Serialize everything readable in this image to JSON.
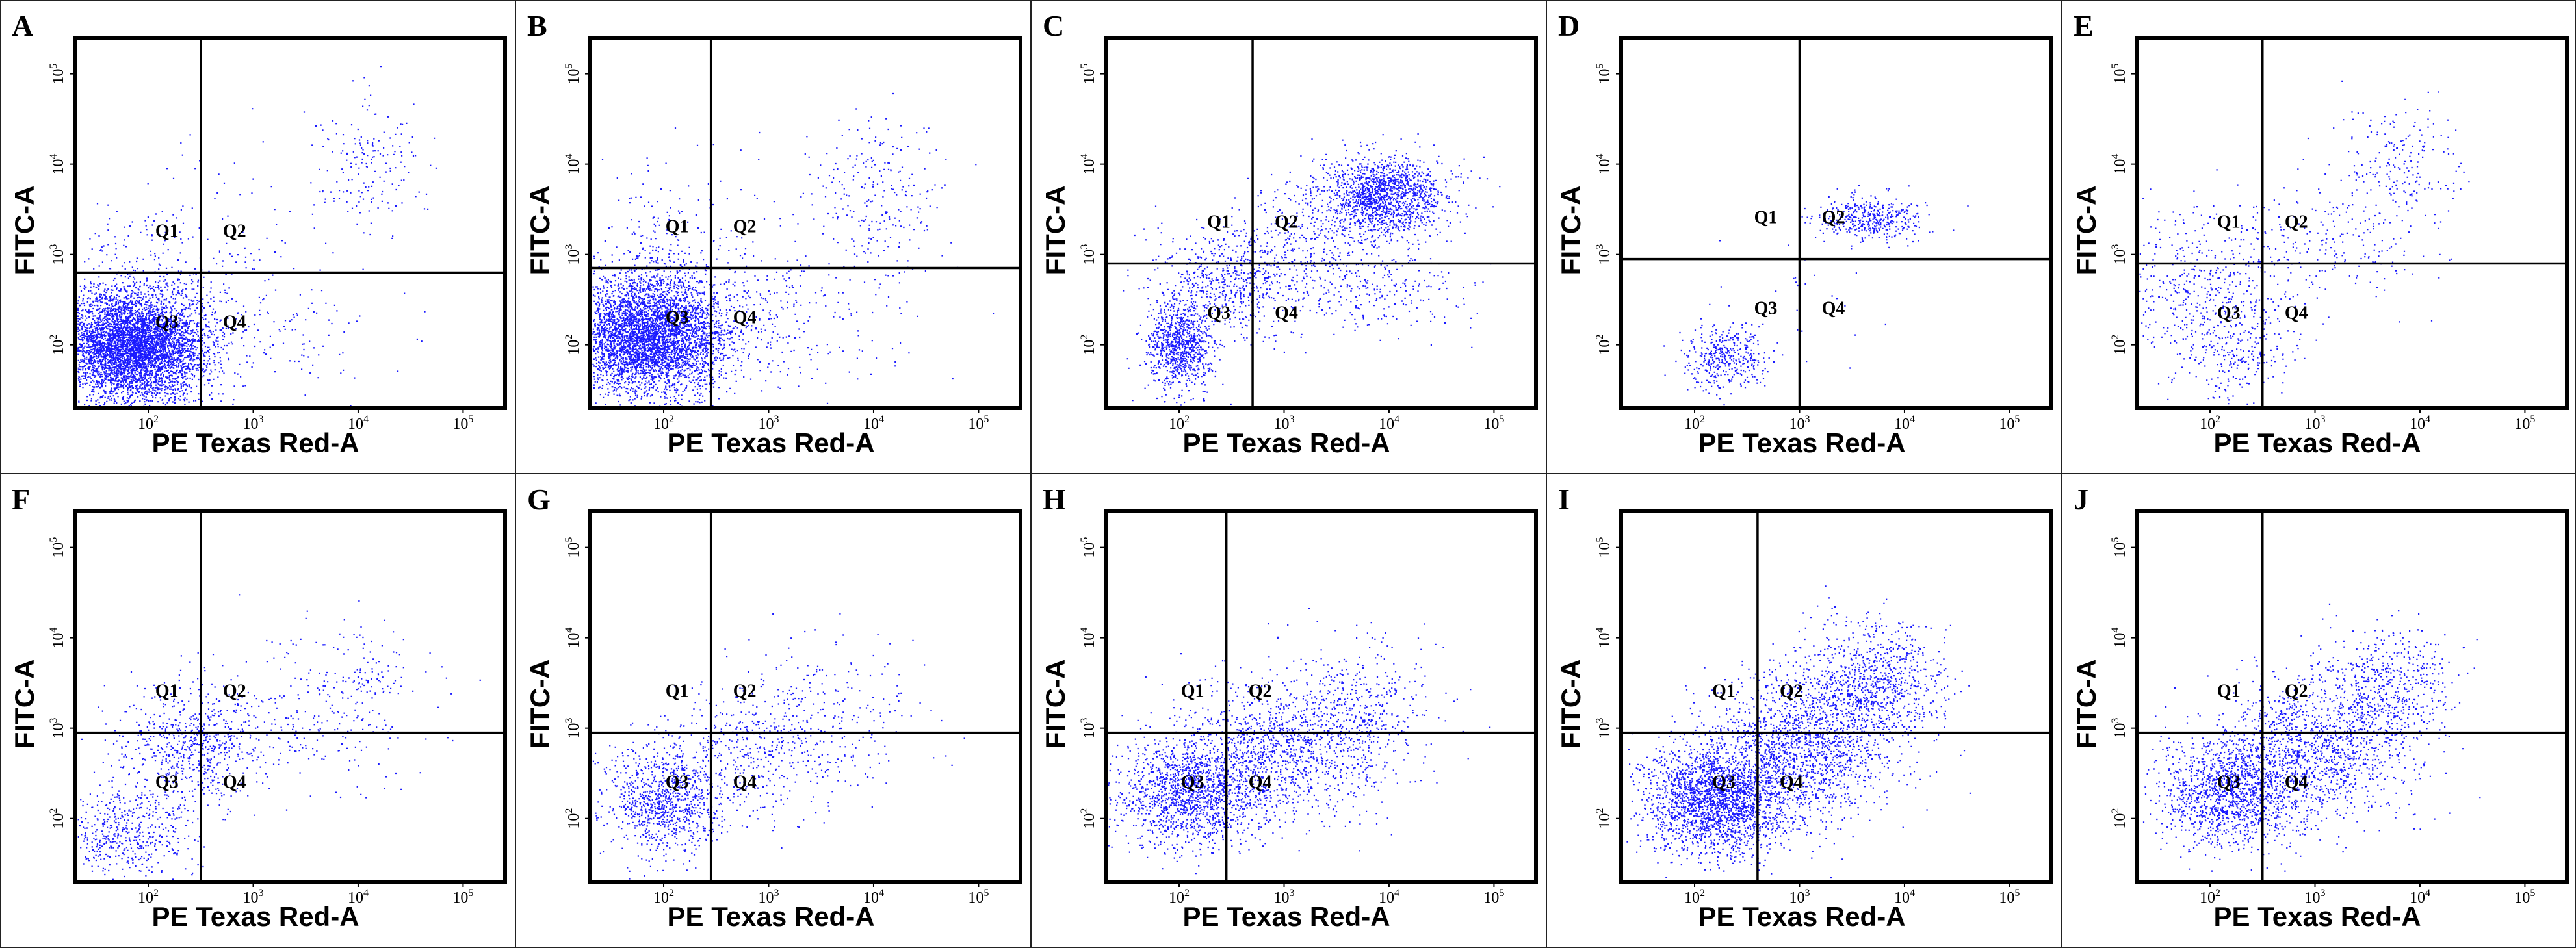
{
  "figure": {
    "scatter_color": "#1a1aff",
    "line_color": "#000000",
    "axis_tick_labels": [
      "10^2",
      "10^3",
      "10^4",
      "10^5"
    ]
  },
  "chart_data": [
    {
      "panel": "A",
      "type": "scatter",
      "xlabel": "PE Texas Red-A",
      "ylabel": "FITC-A",
      "xlim": [
        1.3,
        5.4
      ],
      "ylim": [
        1.3,
        5.4
      ],
      "x_ticks": [
        "10^2",
        "10^3",
        "10^4",
        "10^5"
      ],
      "y_ticks": [
        "10^2",
        "10^3",
        "10^4",
        "10^5"
      ],
      "quadrant_labels": [
        "Q1",
        "Q2",
        "Q3",
        "Q4"
      ],
      "gate": {
        "x": 2.5,
        "y": 2.8
      },
      "clusters": [
        {
          "cx": 1.85,
          "cy": 2.0,
          "sx": 0.35,
          "sy": 0.3,
          "n": 5200
        },
        {
          "cx": 2.0,
          "cy": 2.6,
          "sx": 0.5,
          "sy": 0.5,
          "n": 350
        },
        {
          "cx": 3.1,
          "cy": 2.1,
          "sx": 0.5,
          "sy": 0.35,
          "n": 120
        },
        {
          "cx": 4.1,
          "cy": 4.0,
          "sx": 0.25,
          "sy": 0.35,
          "n": 160
        },
        {
          "cx": 3.4,
          "cy": 3.3,
          "sx": 0.7,
          "sy": 0.6,
          "n": 70
        }
      ]
    },
    {
      "panel": "B",
      "type": "scatter",
      "xlabel": "PE Texas Red-A",
      "ylabel": "FITC-A",
      "xlim": [
        1.3,
        5.4
      ],
      "ylim": [
        1.3,
        5.4
      ],
      "x_ticks": [
        "10^2",
        "10^3",
        "10^4",
        "10^5"
      ],
      "y_ticks": [
        "10^2",
        "10^3",
        "10^4",
        "10^5"
      ],
      "quadrant_labels": [
        "Q1",
        "Q2",
        "Q3",
        "Q4"
      ],
      "gate": {
        "x": 2.45,
        "y": 2.85
      },
      "clusters": [
        {
          "cx": 1.85,
          "cy": 2.1,
          "sx": 0.35,
          "sy": 0.32,
          "n": 4300
        },
        {
          "cx": 2.0,
          "cy": 2.75,
          "sx": 0.5,
          "sy": 0.55,
          "n": 420
        },
        {
          "cx": 3.0,
          "cy": 2.2,
          "sx": 0.55,
          "sy": 0.4,
          "n": 220
        },
        {
          "cx": 4.0,
          "cy": 3.7,
          "sx": 0.35,
          "sy": 0.45,
          "n": 200
        },
        {
          "cx": 3.6,
          "cy": 3.1,
          "sx": 0.6,
          "sy": 0.6,
          "n": 90
        }
      ]
    },
    {
      "panel": "C",
      "type": "scatter",
      "xlabel": "PE Texas Red-A",
      "ylabel": "FITC-A",
      "xlim": [
        1.3,
        5.4
      ],
      "ylim": [
        1.3,
        5.4
      ],
      "x_ticks": [
        "10^2",
        "10^3",
        "10^4",
        "10^5"
      ],
      "y_ticks": [
        "10^2",
        "10^3",
        "10^4",
        "10^5"
      ],
      "quadrant_labels": [
        "Q1",
        "Q2",
        "Q3",
        "Q4"
      ],
      "gate": {
        "x": 2.7,
        "y": 2.9
      },
      "clusters": [
        {
          "cx": 2.0,
          "cy": 2.0,
          "sx": 0.15,
          "sy": 0.25,
          "n": 900
        },
        {
          "cx": 2.5,
          "cy": 2.7,
          "sx": 0.35,
          "sy": 0.3,
          "n": 600
        },
        {
          "cx": 3.95,
          "cy": 3.65,
          "sx": 0.3,
          "sy": 0.22,
          "n": 1500
        },
        {
          "cx": 3.3,
          "cy": 3.2,
          "sx": 0.4,
          "sy": 0.35,
          "n": 350
        },
        {
          "cx": 3.9,
          "cy": 2.6,
          "sx": 0.5,
          "sy": 0.25,
          "n": 220
        }
      ]
    },
    {
      "panel": "D",
      "type": "scatter",
      "xlabel": "PE Texas Red-A",
      "ylabel": "FITC-A",
      "xlim": [
        1.3,
        5.4
      ],
      "ylim": [
        1.3,
        5.4
      ],
      "x_ticks": [
        "10^2",
        "10^3",
        "10^4",
        "10^5"
      ],
      "y_ticks": [
        "10^2",
        "10^3",
        "10^4",
        "10^5"
      ],
      "quadrant_labels": [
        "Q1",
        "Q2",
        "Q3",
        "Q4"
      ],
      "gate": {
        "x": 3.0,
        "y": 2.95
      },
      "clusters": [
        {
          "cx": 2.3,
          "cy": 1.85,
          "sx": 0.2,
          "sy": 0.18,
          "n": 380
        },
        {
          "cx": 3.65,
          "cy": 3.4,
          "sx": 0.25,
          "sy": 0.12,
          "n": 420
        },
        {
          "cx": 3.0,
          "cy": 2.6,
          "sx": 0.4,
          "sy": 0.4,
          "n": 25
        }
      ]
    },
    {
      "panel": "E",
      "type": "scatter",
      "xlabel": "PE Texas Red-A",
      "ylabel": "FITC-A",
      "xlim": [
        1.3,
        5.4
      ],
      "ylim": [
        1.3,
        5.4
      ],
      "x_ticks": [
        "10^2",
        "10^3",
        "10^4",
        "10^5"
      ],
      "y_ticks": [
        "10^2",
        "10^3",
        "10^4",
        "10^5"
      ],
      "quadrant_labels": [
        "Q1",
        "Q2",
        "Q3",
        "Q4"
      ],
      "gate": {
        "x": 2.5,
        "y": 2.9
      },
      "clusters": [
        {
          "cx": 1.9,
          "cy": 2.6,
          "sx": 0.45,
          "sy": 0.45,
          "n": 550
        },
        {
          "cx": 2.3,
          "cy": 1.9,
          "sx": 0.25,
          "sy": 0.3,
          "n": 200
        },
        {
          "cx": 3.8,
          "cy": 4.0,
          "sx": 0.3,
          "sy": 0.3,
          "n": 180
        },
        {
          "cx": 3.2,
          "cy": 3.2,
          "sx": 0.5,
          "sy": 0.35,
          "n": 220
        }
      ]
    },
    {
      "panel": "F",
      "type": "scatter",
      "xlabel": "PE Texas Red-A",
      "ylabel": "FITC-A",
      "xlim": [
        1.3,
        5.4
      ],
      "ylim": [
        1.3,
        5.4
      ],
      "x_ticks": [
        "10^2",
        "10^3",
        "10^4",
        "10^5"
      ],
      "y_ticks": [
        "10^2",
        "10^3",
        "10^4",
        "10^5"
      ],
      "quadrant_labels": [
        "Q1",
        "Q2",
        "Q3",
        "Q4"
      ],
      "gate": {
        "x": 2.5,
        "y": 2.95
      },
      "clusters": [
        {
          "cx": 1.8,
          "cy": 1.85,
          "sx": 0.3,
          "sy": 0.25,
          "n": 500
        },
        {
          "cx": 2.4,
          "cy": 2.8,
          "sx": 0.35,
          "sy": 0.3,
          "n": 650
        },
        {
          "cx": 3.5,
          "cy": 3.1,
          "sx": 0.6,
          "sy": 0.45,
          "n": 260
        },
        {
          "cx": 4.1,
          "cy": 3.6,
          "sx": 0.2,
          "sy": 0.3,
          "n": 80
        }
      ]
    },
    {
      "panel": "G",
      "type": "scatter",
      "xlabel": "PE Texas Red-A",
      "ylabel": "FITC-A",
      "xlim": [
        1.3,
        5.4
      ],
      "ylim": [
        1.3,
        5.4
      ],
      "x_ticks": [
        "10^2",
        "10^3",
        "10^4",
        "10^5"
      ],
      "y_ticks": [
        "10^2",
        "10^3",
        "10^4",
        "10^5"
      ],
      "quadrant_labels": [
        "Q1",
        "Q2",
        "Q3",
        "Q4"
      ],
      "gate": {
        "x": 2.45,
        "y": 2.95
      },
      "clusters": [
        {
          "cx": 2.0,
          "cy": 2.2,
          "sx": 0.28,
          "sy": 0.3,
          "n": 900
        },
        {
          "cx": 2.8,
          "cy": 2.7,
          "sx": 0.45,
          "sy": 0.35,
          "n": 400
        },
        {
          "cx": 3.5,
          "cy": 3.1,
          "sx": 0.45,
          "sy": 0.45,
          "n": 260
        }
      ]
    },
    {
      "panel": "H",
      "type": "scatter",
      "xlabel": "PE Texas Red-A",
      "ylabel": "FITC-A",
      "xlim": [
        1.3,
        5.4
      ],
      "ylim": [
        1.3,
        5.4
      ],
      "x_ticks": [
        "10^2",
        "10^3",
        "10^4",
        "10^5"
      ],
      "y_ticks": [
        "10^2",
        "10^3",
        "10^4",
        "10^5"
      ],
      "quadrant_labels": [
        "Q1",
        "Q2",
        "Q3",
        "Q4"
      ],
      "gate": {
        "x": 2.45,
        "y": 2.95
      },
      "clusters": [
        {
          "cx": 2.1,
          "cy": 2.3,
          "sx": 0.35,
          "sy": 0.3,
          "n": 1500
        },
        {
          "cx": 3.0,
          "cy": 2.8,
          "sx": 0.5,
          "sy": 0.4,
          "n": 1100
        },
        {
          "cx": 3.7,
          "cy": 3.2,
          "sx": 0.35,
          "sy": 0.4,
          "n": 350
        }
      ]
    },
    {
      "panel": "I",
      "type": "scatter",
      "xlabel": "PE Texas Red-A",
      "ylabel": "FITC-A",
      "xlim": [
        1.3,
        5.4
      ],
      "ylim": [
        1.3,
        5.4
      ],
      "x_ticks": [
        "10^2",
        "10^3",
        "10^4",
        "10^5"
      ],
      "y_ticks": [
        "10^2",
        "10^3",
        "10^4",
        "10^5"
      ],
      "quadrant_labels": [
        "Q1",
        "Q2",
        "Q3",
        "Q4"
      ],
      "gate": {
        "x": 2.6,
        "y": 2.95
      },
      "clusters": [
        {
          "cx": 2.2,
          "cy": 2.2,
          "sx": 0.35,
          "sy": 0.3,
          "n": 2200
        },
        {
          "cx": 3.0,
          "cy": 2.8,
          "sx": 0.45,
          "sy": 0.4,
          "n": 1500
        },
        {
          "cx": 3.7,
          "cy": 3.5,
          "sx": 0.35,
          "sy": 0.35,
          "n": 900
        }
      ]
    },
    {
      "panel": "J",
      "type": "scatter",
      "xlabel": "PE Texas Red-A",
      "ylabel": "FITC-A",
      "xlim": [
        1.3,
        5.4
      ],
      "ylim": [
        1.3,
        5.4
      ],
      "x_ticks": [
        "10^2",
        "10^3",
        "10^4",
        "10^5"
      ],
      "y_ticks": [
        "10^2",
        "10^3",
        "10^4",
        "10^5"
      ],
      "quadrant_labels": [
        "Q1",
        "Q2",
        "Q3",
        "Q4"
      ],
      "gate": {
        "x": 2.5,
        "y": 2.95
      },
      "clusters": [
        {
          "cx": 2.2,
          "cy": 2.3,
          "sx": 0.32,
          "sy": 0.3,
          "n": 1400
        },
        {
          "cx": 3.0,
          "cy": 2.8,
          "sx": 0.45,
          "sy": 0.4,
          "n": 1200
        },
        {
          "cx": 3.7,
          "cy": 3.45,
          "sx": 0.3,
          "sy": 0.35,
          "n": 500
        }
      ]
    }
  ]
}
